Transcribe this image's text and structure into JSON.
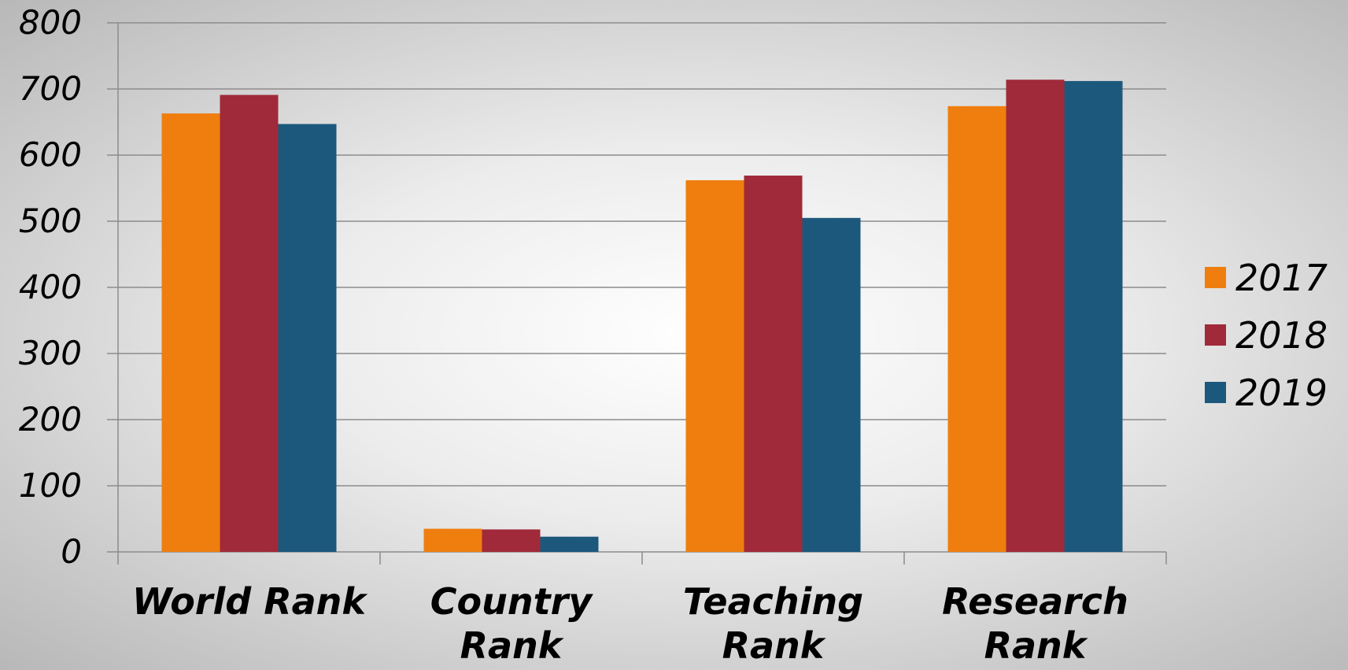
{
  "chart_data": {
    "type": "bar",
    "categories": [
      [
        "World Rank"
      ],
      [
        "Country",
        "Rank"
      ],
      [
        "Teaching",
        "Rank"
      ],
      [
        "Research",
        "Rank"
      ]
    ],
    "series": [
      {
        "name": "2017",
        "color": "#ef7e0f",
        "values": [
          663,
          35,
          562,
          674
        ]
      },
      {
        "name": "2018",
        "color": "#a02a39",
        "values": [
          691,
          34,
          569,
          714
        ]
      },
      {
        "name": "2019",
        "color": "#1c587c",
        "values": [
          647,
          23,
          505,
          712
        ]
      }
    ],
    "title": "",
    "xlabel": "",
    "ylabel": "",
    "ylim": [
      0,
      800
    ],
    "yticks": [
      "0",
      "100",
      "200",
      "300",
      "400",
      "500",
      "600",
      "700",
      "800"
    ],
    "grid": true,
    "legend_position": "right",
    "colors": {
      "gridline": "#8c8c8c",
      "axis_text": "#000000"
    }
  }
}
